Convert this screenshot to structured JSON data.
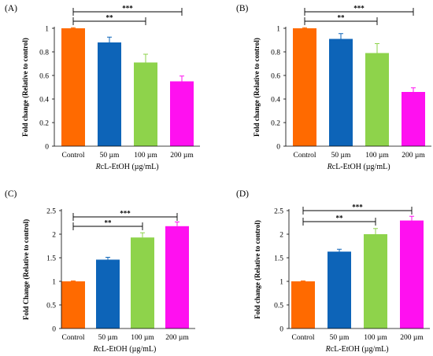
{
  "colors": {
    "control": "#FF6A00",
    "c50": "#0D64B8",
    "c100": "#8ED34B",
    "c200": "#FF10F0",
    "axis": "#000000",
    "bracket": "#000000"
  },
  "chart_data": [
    {
      "type": "bar",
      "panel_label": "(A)",
      "categories": [
        "Control",
        "50 µm",
        "100 µm",
        "200 µm"
      ],
      "values": [
        1.0,
        0.88,
        0.71,
        0.55
      ],
      "errors": [
        0.005,
        0.045,
        0.07,
        0.045
      ],
      "xlabel_italic": "R",
      "xlabel_rest": "cL-EtOH (µg/mL)",
      "ylabel": "Fold change (Relative to control)",
      "ylim": [
        0,
        1
      ],
      "yticks": [
        "0",
        "0.2",
        "0.4",
        "0.6",
        "0.8",
        "1"
      ],
      "yticks_values": [
        0,
        0.2,
        0.4,
        0.6,
        0.8,
        1
      ],
      "brackets": [
        {
          "from": 0,
          "to": 2,
          "label": "**",
          "level": 1
        },
        {
          "from": 0,
          "to": 3,
          "label": "***",
          "level": 2
        }
      ]
    },
    {
      "type": "bar",
      "panel_label": "(B)",
      "categories": [
        "Control",
        "50 µm",
        "100 µm",
        "200 µm"
      ],
      "values": [
        1.0,
        0.91,
        0.79,
        0.46
      ],
      "errors": [
        0.005,
        0.045,
        0.08,
        0.035
      ],
      "xlabel_italic": "R",
      "xlabel_rest": "cL-EtOH (µg/mL)",
      "ylabel": "Fold change (Relative to control)",
      "ylim": [
        0,
        1
      ],
      "yticks": [
        "0",
        "0.2",
        "0.4",
        "0.6",
        "0.8",
        "1"
      ],
      "yticks_values": [
        0,
        0.2,
        0.4,
        0.6,
        0.8,
        1
      ],
      "brackets": [
        {
          "from": 0,
          "to": 2,
          "label": "**",
          "level": 1
        },
        {
          "from": 0,
          "to": 3,
          "label": "***",
          "level": 2
        }
      ]
    },
    {
      "type": "bar",
      "panel_label": "(C)",
      "categories": [
        "Control",
        "50 µm",
        "100 µm",
        "200 µm"
      ],
      "values": [
        1.0,
        1.46,
        1.93,
        2.17
      ],
      "errors": [
        0.01,
        0.05,
        0.1,
        0.09
      ],
      "xlabel_italic": "R",
      "xlabel_rest": "cL-EtOH (µg/mL)",
      "ylabel": "Fold Change (Relative to control)",
      "ylim": [
        0,
        2.5
      ],
      "yticks": [
        "0",
        "0.5",
        "1",
        "1.5",
        "2",
        "2.5"
      ],
      "yticks_values": [
        0,
        0.5,
        1,
        1.5,
        2,
        2.5
      ],
      "brackets": [
        {
          "from": 0,
          "to": 2,
          "label": "**",
          "level": 1
        },
        {
          "from": 0,
          "to": 3,
          "label": "***",
          "level": 2
        }
      ]
    },
    {
      "type": "bar",
      "panel_label": "(D)",
      "categories": [
        "Control",
        "50 µm",
        "100 µm",
        "200 µm"
      ],
      "values": [
        1.0,
        1.63,
        2.0,
        2.29
      ],
      "errors": [
        0.01,
        0.05,
        0.12,
        0.09
      ],
      "xlabel_italic": "R",
      "xlabel_rest": "cL-EtOH (µg/mL)",
      "ylabel": "Fold change (Relative to control)",
      "ylim": [
        0,
        2.5
      ],
      "yticks": [
        "0",
        "0.5",
        "1",
        "1.5",
        "2",
        "2.5"
      ],
      "yticks_values": [
        0,
        0.5,
        1,
        1.5,
        2,
        2.5
      ],
      "brackets": [
        {
          "from": 0,
          "to": 2,
          "label": "**",
          "level": 1
        },
        {
          "from": 0,
          "to": 3,
          "label": "***",
          "level": 2
        }
      ]
    }
  ]
}
